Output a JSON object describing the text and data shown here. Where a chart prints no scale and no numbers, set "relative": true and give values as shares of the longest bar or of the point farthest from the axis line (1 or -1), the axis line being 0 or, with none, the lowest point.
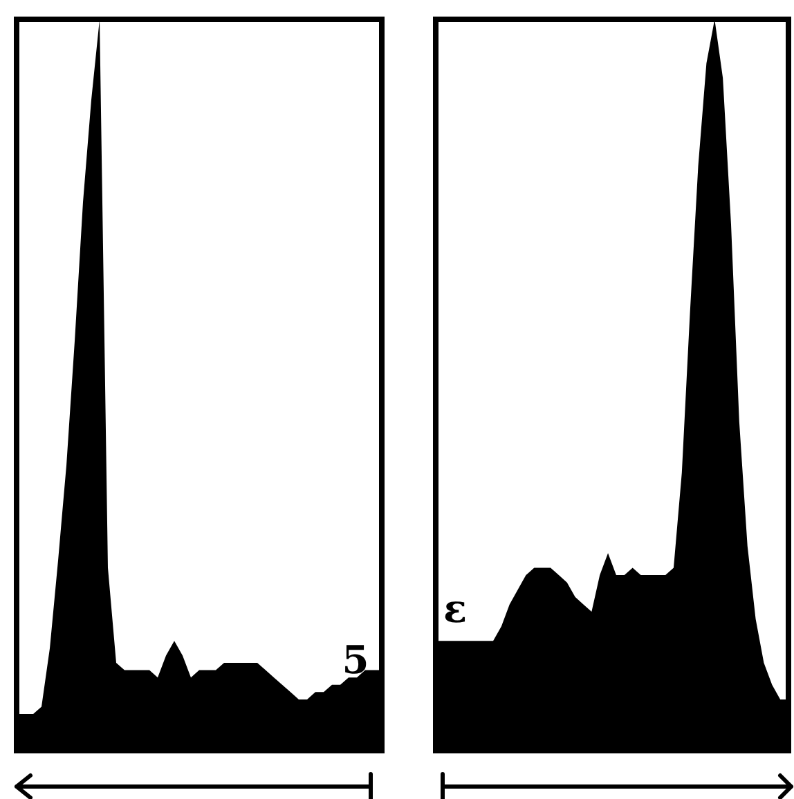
{
  "chart_data": [
    {
      "type": "area",
      "relative": true,
      "color": "#000000",
      "annotations": [
        "5"
      ],
      "categories": [
        null,
        null,
        null,
        null,
        null,
        null,
        null,
        null,
        null,
        null,
        null,
        null,
        null,
        null,
        null,
        null,
        null,
        null,
        null,
        null,
        null,
        null,
        null,
        null,
        null,
        null,
        null,
        null,
        null,
        null,
        null,
        null,
        null,
        null,
        null,
        null,
        null,
        null,
        null,
        null,
        null,
        null,
        null,
        null,
        null
      ],
      "values": [
        0.05,
        0.05,
        0.05,
        0.06,
        0.14,
        0.26,
        0.39,
        0.56,
        0.75,
        0.89,
        1,
        0.25,
        0.12,
        0.11,
        0.11,
        0.11,
        0.11,
        0.1,
        0.13,
        0.15,
        0.13,
        0.1,
        0.11,
        0.11,
        0.11,
        0.12,
        0.12,
        0.12,
        0.12,
        0.12,
        0.11,
        0.1,
        0.09,
        0.08,
        0.07,
        0.07,
        0.08,
        0.08,
        0.09,
        0.09,
        0.1,
        0.1,
        0.11,
        0.11,
        0.11
      ]
    },
    {
      "type": "area",
      "relative": true,
      "color": "#000000",
      "annotations": [
        "ε"
      ],
      "categories": [
        null,
        null,
        null,
        null,
        null,
        null,
        null,
        null,
        null,
        null,
        null,
        null,
        null,
        null,
        null,
        null,
        null,
        null,
        null,
        null,
        null,
        null,
        null,
        null,
        null,
        null,
        null,
        null,
        null,
        null,
        null,
        null,
        null,
        null,
        null,
        null,
        null,
        null,
        null,
        null,
        null,
        null,
        null,
        null
      ],
      "values": [
        0.15,
        0.15,
        0.15,
        0.15,
        0.15,
        0.15,
        0.15,
        0.15,
        0.17,
        0.2,
        0.22,
        0.24,
        0.25,
        0.25,
        0.25,
        0.24,
        0.23,
        0.21,
        0.2,
        0.19,
        0.24,
        0.27,
        0.24,
        0.24,
        0.25,
        0.24,
        0.24,
        0.24,
        0.24,
        0.25,
        0.38,
        0.6,
        0.8,
        0.94,
        1,
        0.92,
        0.72,
        0.45,
        0.28,
        0.18,
        0.12,
        0.09,
        0.07,
        0.07
      ]
    }
  ]
}
